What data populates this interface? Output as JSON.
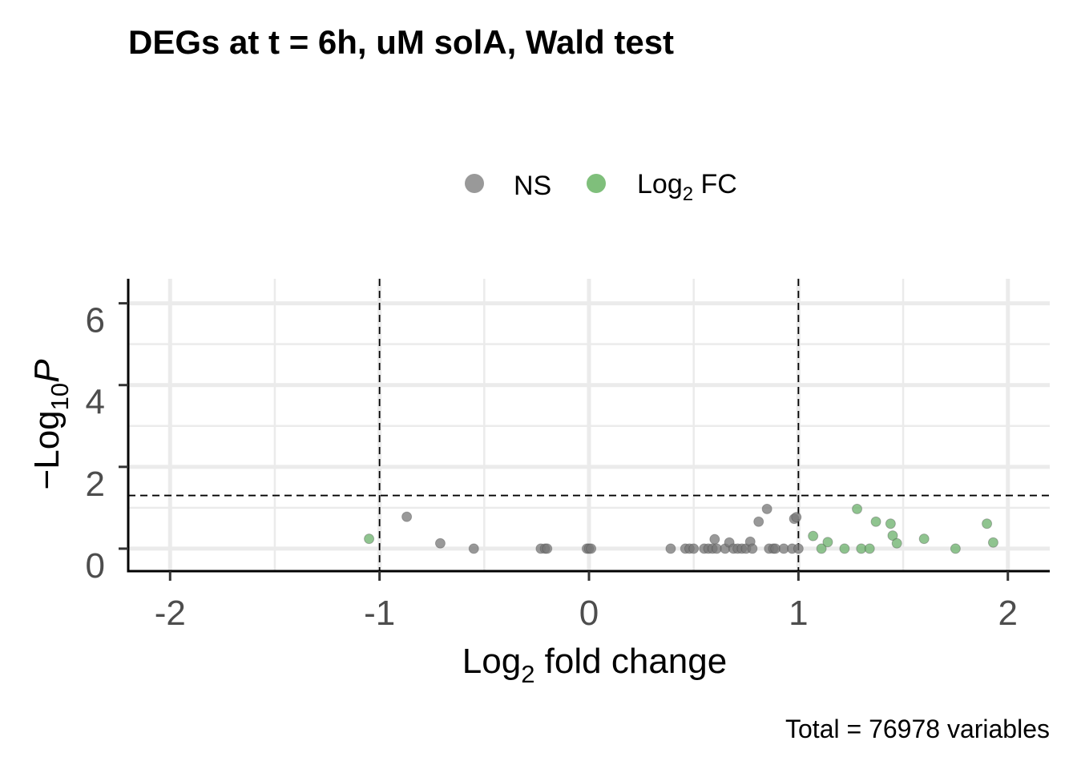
{
  "chart_data": {
    "type": "scatter",
    "title": "DEGs at t = 6h, uM solA, Wald test",
    "caption": "Total = 76978 variables",
    "xlabel_main": "Log",
    "xlabel_sub": "2",
    "xlabel_rest": " fold change",
    "ylabel_prefix": "−Log",
    "ylabel_sub": "10",
    "ylabel_var": "P",
    "xlim": [
      -2.2,
      2.2
    ],
    "ylim": [
      -0.55,
      6.6
    ],
    "x_ticks": [
      -2,
      -1,
      0,
      1,
      2
    ],
    "x_tick_labels": [
      "-2",
      "-1",
      "0",
      "1",
      "2"
    ],
    "y_ticks": [
      0,
      2,
      4,
      6
    ],
    "y_tick_labels": [
      "0",
      "2",
      "4",
      "6"
    ],
    "cutoffs": {
      "fc": [
        -1,
        1
      ],
      "p": 1.3
    },
    "legend": {
      "position": "top",
      "items": [
        {
          "label": "NS",
          "color": "#999999"
        },
        {
          "label_main": "Log",
          "label_sub": "2",
          "label_rest": " FC",
          "color": "#7fbf7b"
        }
      ]
    },
    "grid": true,
    "series": [
      {
        "name": "NS",
        "color": "#777777",
        "points": [
          [
            -0.87,
            0.78
          ],
          [
            -0.71,
            0.13
          ],
          [
            -0.55,
            0.0
          ],
          [
            -0.23,
            0.0
          ],
          [
            -0.21,
            0.0
          ],
          [
            -0.2,
            0.0
          ],
          [
            -0.01,
            0.0
          ],
          [
            0.0,
            0.0
          ],
          [
            0.01,
            0.0
          ],
          [
            0.39,
            0.0
          ],
          [
            0.46,
            0.0
          ],
          [
            0.48,
            0.0
          ],
          [
            0.5,
            0.0
          ],
          [
            0.55,
            0.0
          ],
          [
            0.57,
            0.0
          ],
          [
            0.59,
            0.0
          ],
          [
            0.6,
            0.23
          ],
          [
            0.61,
            0.0
          ],
          [
            0.65,
            0.0
          ],
          [
            0.67,
            0.15
          ],
          [
            0.69,
            0.0
          ],
          [
            0.71,
            0.0
          ],
          [
            0.73,
            0.0
          ],
          [
            0.75,
            0.0
          ],
          [
            0.77,
            0.17
          ],
          [
            0.78,
            0.0
          ],
          [
            0.81,
            0.66
          ],
          [
            0.85,
            0.97
          ],
          [
            0.86,
            0.0
          ],
          [
            0.88,
            0.0
          ],
          [
            0.89,
            0.0
          ],
          [
            0.93,
            0.0
          ],
          [
            0.97,
            0.0
          ],
          [
            0.98,
            0.73
          ],
          [
            0.99,
            0.77
          ],
          [
            1.0,
            0.0
          ]
        ]
      },
      {
        "name": "Log2 FC",
        "color": "#6ab06a",
        "points": [
          [
            -1.05,
            0.24
          ],
          [
            1.07,
            0.31
          ],
          [
            1.11,
            0.0
          ],
          [
            1.14,
            0.16
          ],
          [
            1.22,
            0.0
          ],
          [
            1.28,
            0.97
          ],
          [
            1.3,
            0.0
          ],
          [
            1.34,
            0.0
          ],
          [
            1.37,
            0.66
          ],
          [
            1.44,
            0.61
          ],
          [
            1.45,
            0.32
          ],
          [
            1.47,
            0.13
          ],
          [
            1.6,
            0.24
          ],
          [
            1.75,
            0.0
          ],
          [
            1.9,
            0.61
          ],
          [
            1.93,
            0.15
          ]
        ]
      }
    ]
  }
}
